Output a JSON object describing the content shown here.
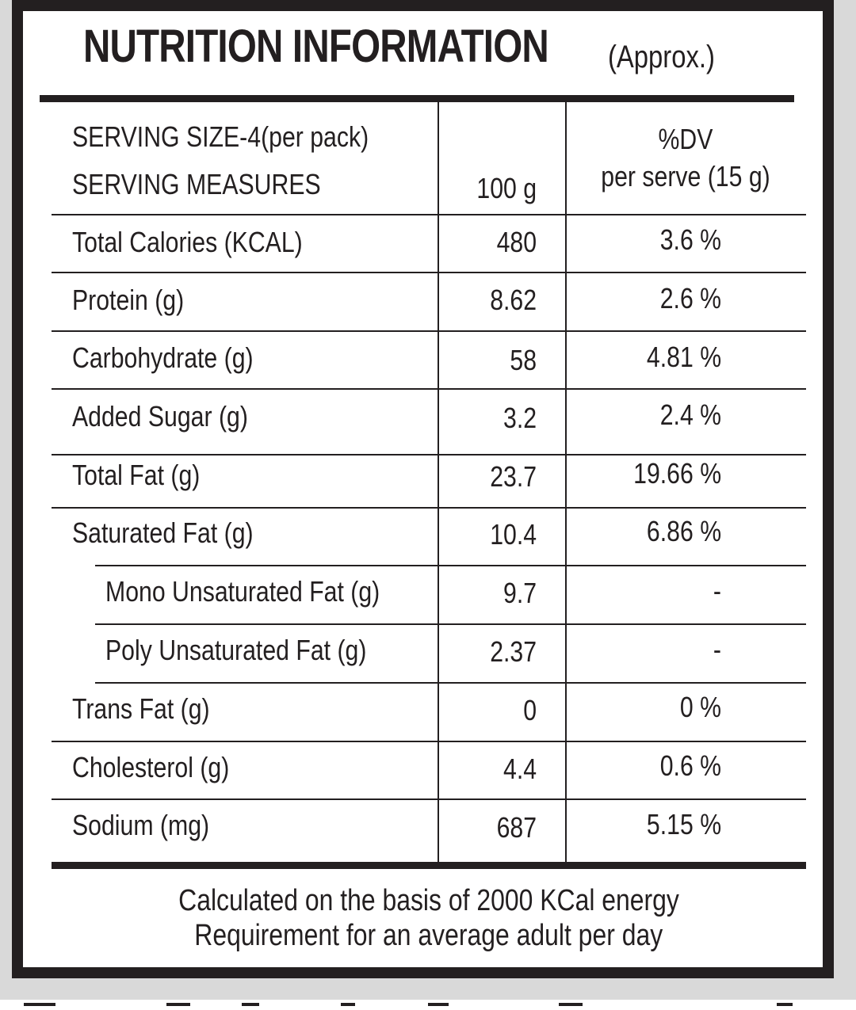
{
  "title": {
    "main": "NUTRITION INFORMATION",
    "sub": "(Approx.)"
  },
  "header": {
    "serving_size": "SERVING SIZE-4(per pack)",
    "serving_measures": "SERVING MEASURES",
    "col_amount": "100 g",
    "col_dv_line1": "%DV",
    "col_dv_line2": "per serve (15 g)"
  },
  "rows": [
    {
      "name": "Total Calories (KCAL)",
      "amount": "480",
      "dv": "3.6 %"
    },
    {
      "name": "Protein (g)",
      "amount": "8.62",
      "dv": "2.6 %"
    },
    {
      "name": "Carbohydrate (g)",
      "amount": "58",
      "dv": "4.81 %"
    },
    {
      "name": "Added Sugar (g)",
      "amount": "3.2",
      "dv": "2.4 %"
    },
    {
      "name": "Total Fat (g)",
      "amount": "23.7",
      "dv": "19.66 %"
    },
    {
      "name": "Saturated Fat (g)",
      "amount": "10.4",
      "dv": "6.86 %"
    },
    {
      "name": "Mono Unsaturated Fat (g)",
      "amount": "9.7",
      "dv": "-"
    },
    {
      "name": "Poly Unsaturated Fat (g)",
      "amount": "2.37",
      "dv": "-"
    },
    {
      "name": "Trans Fat (g)",
      "amount": "0",
      "dv": "0 %"
    },
    {
      "name": "Cholesterol (g)",
      "amount": "4.4",
      "dv": "0.6 %"
    },
    {
      "name": "Sodium (mg)",
      "amount": "687",
      "dv": "5.15 %"
    }
  ],
  "footer": {
    "line1": "Calculated on the basis of 2000 KCal energy",
    "line2": "Requirement for an average adult per day"
  }
}
